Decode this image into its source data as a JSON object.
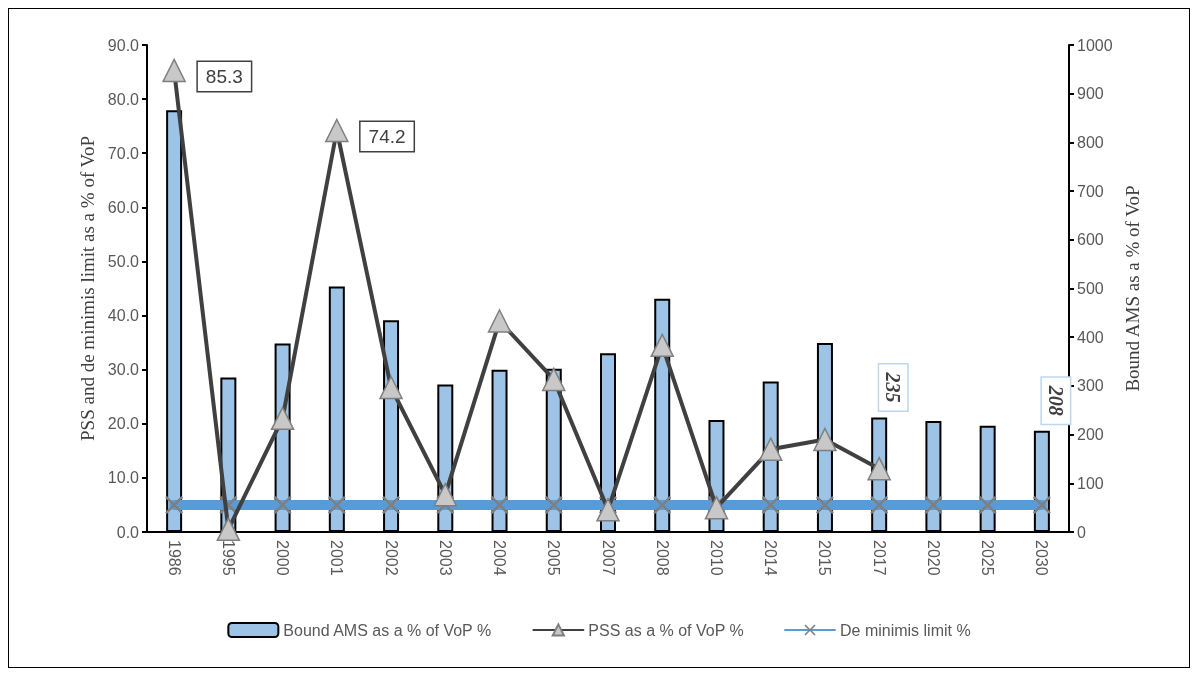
{
  "chart_data": {
    "type": "bar",
    "categories": [
      "1986",
      "1995",
      "2000",
      "2001",
      "2002",
      "2003",
      "2004",
      "2005",
      "2007",
      "2008",
      "2010",
      "2014",
      "2015",
      "2017",
      "2020",
      "2025",
      "2030"
    ],
    "ylabel": "PSS and de minimis limit as a % of VoP",
    "y2label": "Bound AMS as a % of VoP",
    "series": [
      {
        "name": "Bound AMS as a % of VoP %",
        "axis": "y2",
        "color": "#9dc3e6",
        "values": [
          866,
          317,
          387,
          504,
          435,
          303,
          333,
          335,
          367,
          479,
          230,
          309,
          388,
          235,
          228,
          218,
          208
        ],
        "value_labels": [
          null,
          null,
          null,
          null,
          null,
          null,
          null,
          null,
          null,
          null,
          null,
          null,
          null,
          "235",
          null,
          null,
          "208"
        ]
      },
      {
        "name": "PSS as a % of VoP %",
        "type": "line",
        "marker": "triangle",
        "color": "#404040",
        "values": [
          85.3,
          0.5,
          21.0,
          74.2,
          26.7,
          6.9,
          39.0,
          28.2,
          4.1,
          34.5,
          4.5,
          15.3,
          17.1,
          11.7,
          null,
          null,
          null
        ],
        "value_labels": [
          "85.3",
          null,
          null,
          "74.2",
          null,
          null,
          null,
          null,
          null,
          null,
          null,
          null,
          null,
          null,
          null,
          null,
          null
        ]
      },
      {
        "name": "De minimis limit %",
        "type": "line",
        "marker": "cross",
        "color": "#5b9bd5",
        "values": [
          5,
          5,
          5,
          5,
          5,
          5,
          5,
          5,
          5,
          5,
          5,
          5,
          5,
          5,
          5,
          5,
          5
        ]
      }
    ],
    "ylim": [
      0,
      90
    ],
    "yticks": [
      {
        "value": 0,
        "label": "0.0"
      },
      {
        "value": 10,
        "label": "10.0"
      },
      {
        "value": 20,
        "label": "20.0"
      },
      {
        "value": 30,
        "label": "30.0"
      },
      {
        "value": 40,
        "label": "40.0"
      },
      {
        "value": 50,
        "label": "50.0"
      },
      {
        "value": 60,
        "label": "60.0"
      },
      {
        "value": 70,
        "label": "70.0"
      },
      {
        "value": 80,
        "label": "80.0"
      },
      {
        "value": 90,
        "label": "90.0"
      }
    ],
    "y2lim": [
      0,
      1000
    ],
    "y2ticks": [
      0,
      100,
      200,
      300,
      400,
      500,
      600,
      700,
      800,
      900,
      1000
    ],
    "legend": "bottom",
    "grid": false
  }
}
